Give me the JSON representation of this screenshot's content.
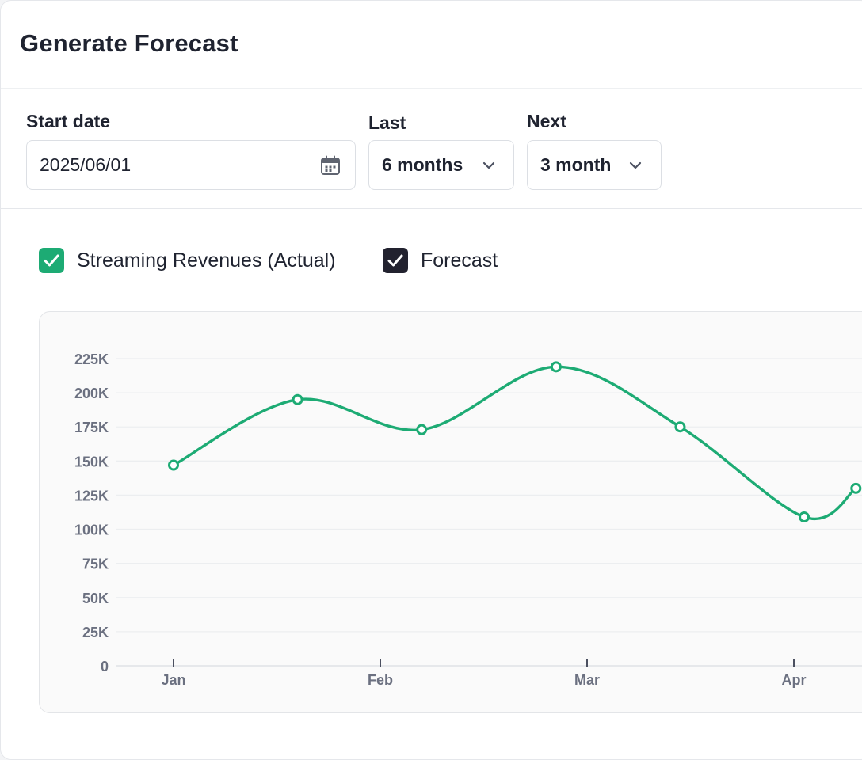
{
  "header": {
    "title": "Generate Forecast"
  },
  "controls": {
    "start_date": {
      "label": "Start date",
      "value": "2025/06/01",
      "icon": "calendar-icon"
    },
    "last": {
      "label": "Last",
      "value": "6 months",
      "icon": "chevron-down-icon"
    },
    "next": {
      "label": "Next",
      "value": "3 month",
      "icon": "chevron-down-icon"
    }
  },
  "legend": {
    "actual": {
      "label": "Streaming Revenues (Actual)",
      "checked": true,
      "color": "#1dab74"
    },
    "forecast": {
      "label": "Forecast",
      "checked": true,
      "color": "#22222f"
    }
  },
  "chart_data": {
    "type": "line",
    "title": "",
    "xlabel": "",
    "ylabel": "",
    "ylim": [
      0,
      225000
    ],
    "y_ticks": [
      "0",
      "25K",
      "50K",
      "75K",
      "100K",
      "125K",
      "150K",
      "175K",
      "200K",
      "225K"
    ],
    "y_tick_values": [
      0,
      25000,
      50000,
      75000,
      100000,
      125000,
      150000,
      175000,
      200000,
      225000
    ],
    "x_ticks": [
      "Jan",
      "Feb",
      "Mar",
      "Apr"
    ],
    "x_tick_positions": [
      0,
      1,
      2,
      3
    ],
    "grid": true,
    "series": [
      {
        "name": "Streaming Revenues (Actual)",
        "color": "#1dab74",
        "x": [
          0.0,
          0.6,
          1.2,
          1.85,
          2.45,
          3.05,
          3.3
        ],
        "values": [
          147000,
          195000,
          173000,
          219000,
          175000,
          109000,
          130000
        ]
      }
    ]
  }
}
